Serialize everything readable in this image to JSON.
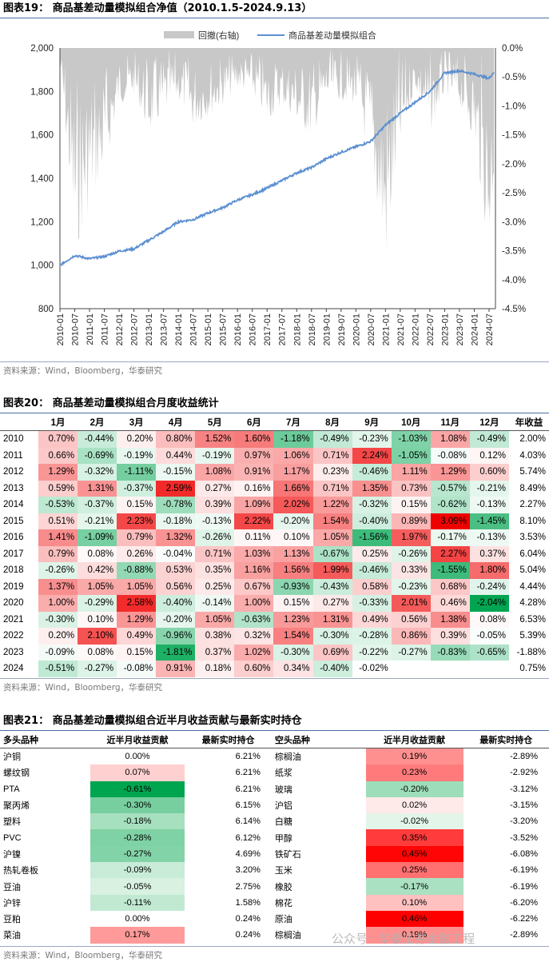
{
  "fig19": {
    "title": "图表19：  商品基差动量模拟组合净值（2010.1.5-2024.9.13）",
    "source": "资料来源：Wind，Bloomberg，华泰研究"
  },
  "chart_data": [
    {
      "type": "line",
      "title": "",
      "legend": [
        "回撤(右轴)",
        "商品基差动量模拟组合"
      ],
      "legend_position": "top",
      "x_ticks": [
        "2010-01",
        "2010-07",
        "2011-01",
        "2011-07",
        "2012-01",
        "2012-07",
        "2013-01",
        "2013-07",
        "2014-01",
        "2014-07",
        "2015-01",
        "2015-07",
        "2016-01",
        "2016-07",
        "2017-01",
        "2017-07",
        "2018-01",
        "2018-07",
        "2019-01",
        "2019-07",
        "2020-01",
        "2020-07",
        "2021-01",
        "2021-07",
        "2022-01",
        "2022-07",
        "2023-01",
        "2023-07",
        "2024-01",
        "2024-07"
      ],
      "ylim": [
        800,
        2000
      ],
      "y_ticks": [
        "2,000",
        "1,800",
        "1,600",
        "1,400",
        "1,200",
        "1,000",
        "800"
      ],
      "y2lim": [
        -4.5,
        0
      ],
      "y2_ticks": [
        "0.0%",
        "-0.5%",
        "-1.0%",
        "-1.5%",
        "-2.0%",
        "-2.5%",
        "-3.0%",
        "-3.5%",
        "-4.0%",
        "-4.5%"
      ],
      "series": [
        {
          "name": "商品基差动量模拟组合",
          "color": "#5b8fd1",
          "axis": "left",
          "x": [
            "2010-01",
            "2010-07",
            "2011-01",
            "2011-07",
            "2012-01",
            "2012-07",
            "2013-01",
            "2013-07",
            "2014-01",
            "2014-07",
            "2015-01",
            "2015-07",
            "2016-01",
            "2016-07",
            "2017-01",
            "2017-07",
            "2018-01",
            "2018-07",
            "2019-01",
            "2019-07",
            "2020-01",
            "2020-07",
            "2021-01",
            "2021-07",
            "2022-01",
            "2022-07",
            "2023-01",
            "2023-07",
            "2024-01",
            "2024-07",
            "2024-09"
          ],
          "values": [
            1000,
            1045,
            1030,
            1040,
            1065,
            1075,
            1115,
            1155,
            1200,
            1210,
            1240,
            1265,
            1300,
            1325,
            1355,
            1390,
            1425,
            1450,
            1490,
            1520,
            1545,
            1570,
            1645,
            1700,
            1750,
            1800,
            1885,
            1895,
            1880,
            1860,
            1890
          ]
        },
        {
          "name": "回撤(右轴)",
          "color": "#c8c8c8",
          "axis": "right",
          "type": "area",
          "x": [
            "2010-01",
            "2010-07",
            "2011-01",
            "2011-07",
            "2012-01",
            "2012-07",
            "2013-01",
            "2013-07",
            "2014-01",
            "2014-07",
            "2015-01",
            "2015-07",
            "2016-01",
            "2016-07",
            "2017-01",
            "2017-07",
            "2018-01",
            "2018-07",
            "2019-01",
            "2019-07",
            "2020-01",
            "2020-07",
            "2021-01",
            "2021-07",
            "2022-01",
            "2022-07",
            "2023-01",
            "2023-07",
            "2024-01",
            "2024-07",
            "2024-09"
          ],
          "values": [
            -0.3,
            -3.6,
            -2.8,
            -2.2,
            -1.0,
            -0.8,
            -1.5,
            -1.2,
            -0.9,
            -1.4,
            -1.2,
            -1.0,
            -0.7,
            -0.8,
            -1.3,
            -1.0,
            -1.3,
            -1.6,
            -0.9,
            -0.9,
            -1.0,
            -2.0,
            -3.9,
            -1.8,
            -0.7,
            -1.5,
            -0.8,
            -1.0,
            -1.6,
            -3.6,
            -2.4
          ]
        }
      ]
    },
    {
      "type": "heatmap",
      "title": "",
      "columns": [
        "1月",
        "2月",
        "3月",
        "4月",
        "5月",
        "6月",
        "7月",
        "8月",
        "9月",
        "10月",
        "11月",
        "12月",
        "年收益"
      ],
      "rows": [
        {
          "year": "2010",
          "m": [
            0.7,
            -0.44,
            0.2,
            0.8,
            1.52,
            1.6,
            -1.18,
            -0.49,
            -0.23,
            -1.03,
            1.08,
            -0.49
          ],
          "m_text": [
            "0.70%",
            "-0.44%",
            "0.20%",
            "0.80%",
            "1.52%",
            "1.60%",
            "-1.18%",
            "-0.49%",
            "-0.23%",
            "-1.03%",
            "1.08%",
            "-0.49%"
          ],
          "annual": "2.00%"
        },
        {
          "year": "2011",
          "m": [
            0.66,
            -0.69,
            -0.19,
            0.44,
            -0.19,
            0.97,
            1.06,
            0.71,
            2.24,
            -1.05,
            -0.08,
            0.12
          ],
          "m_text": [
            "0.66%",
            "-0.69%",
            "-0.19%",
            "0.44%",
            "-0.19%",
            "0.97%",
            "1.06%",
            "0.71%",
            "2.24%",
            "-1.05%",
            "-0.08%",
            "0.12%"
          ],
          "annual": "4.03%"
        },
        {
          "year": "2012",
          "m": [
            1.29,
            -0.32,
            -1.11,
            -0.15,
            1.08,
            0.91,
            1.17,
            0.23,
            -0.46,
            1.11,
            1.29,
            0.6
          ],
          "m_text": [
            "1.29%",
            "-0.32%",
            "-1.11%",
            "-0.15%",
            "1.08%",
            "0.91%",
            "1.17%",
            "0.23%",
            "-0.46%",
            "1.11%",
            "1.29%",
            "0.60%"
          ],
          "annual": "5.74%"
        },
        {
          "year": "2013",
          "m": [
            0.59,
            1.31,
            -0.37,
            2.59,
            0.27,
            0.16,
            1.66,
            0.71,
            1.35,
            0.73,
            -0.57,
            -0.21
          ],
          "m_text": [
            "0.59%",
            "1.31%",
            "-0.37%",
            "2.59%",
            "0.27%",
            "0.16%",
            "1.66%",
            "0.71%",
            "1.35%",
            "0.73%",
            "-0.57%",
            "-0.21%"
          ],
          "annual": "8.49%"
        },
        {
          "year": "2014",
          "m": [
            -0.53,
            -0.37,
            0.15,
            -0.78,
            0.39,
            1.09,
            2.02,
            1.22,
            -0.32,
            0.15,
            -0.62,
            -0.13
          ],
          "m_text": [
            "-0.53%",
            "-0.37%",
            "0.15%",
            "-0.78%",
            "0.39%",
            "1.09%",
            "2.02%",
            "1.22%",
            "-0.32%",
            "0.15%",
            "-0.62%",
            "-0.13%"
          ],
          "annual": "2.27%"
        },
        {
          "year": "2015",
          "m": [
            0.51,
            -0.21,
            2.23,
            -0.18,
            -0.13,
            2.22,
            -0.2,
            1.54,
            -0.4,
            0.89,
            3.09,
            -1.45
          ],
          "m_text": [
            "0.51%",
            "-0.21%",
            "2.23%",
            "-0.18%",
            "-0.13%",
            "2.22%",
            "-0.20%",
            "1.54%",
            "-0.40%",
            "0.89%",
            "3.09%",
            "-1.45%"
          ],
          "annual": "8.10%"
        },
        {
          "year": "2016",
          "m": [
            1.41,
            -1.09,
            0.79,
            1.32,
            -0.26,
            0.11,
            0.1,
            1.05,
            -1.56,
            1.97,
            -0.17,
            -0.13
          ],
          "m_text": [
            "1.41%",
            "-1.09%",
            "0.79%",
            "1.32%",
            "-0.26%",
            "0.11%",
            "0.10%",
            "1.05%",
            "-1.56%",
            "1.97%",
            "-0.17%",
            "-0.13%"
          ],
          "annual": "3.53%"
        },
        {
          "year": "2017",
          "m": [
            0.79,
            0.08,
            0.26,
            -0.04,
            0.71,
            1.03,
            1.13,
            -0.67,
            0.25,
            -0.26,
            2.27,
            0.37
          ],
          "m_text": [
            "0.79%",
            "0.08%",
            "0.26%",
            "-0.04%",
            "0.71%",
            "1.03%",
            "1.13%",
            "-0.67%",
            "0.25%",
            "-0.26%",
            "2.27%",
            "0.37%"
          ],
          "annual": "6.04%"
        },
        {
          "year": "2018",
          "m": [
            -0.26,
            0.42,
            -0.88,
            0.53,
            0.35,
            1.16,
            1.56,
            1.99,
            -0.46,
            0.33,
            -1.55,
            1.8
          ],
          "m_text": [
            "-0.26%",
            "0.42%",
            "-0.88%",
            "0.53%",
            "0.35%",
            "1.16%",
            "1.56%",
            "1.99%",
            "-0.46%",
            "0.33%",
            "-1.55%",
            "1.80%"
          ],
          "annual": "5.04%"
        },
        {
          "year": "2019",
          "m": [
            1.37,
            1.05,
            1.05,
            0.56,
            0.25,
            0.67,
            -0.93,
            -0.43,
            0.58,
            -0.23,
            0.68,
            -0.24
          ],
          "m_text": [
            "1.37%",
            "1.05%",
            "1.05%",
            "0.56%",
            "0.25%",
            "0.67%",
            "-0.93%",
            "-0.43%",
            "0.58%",
            "-0.23%",
            "0.68%",
            "-0.24%"
          ],
          "annual": "4.44%"
        },
        {
          "year": "2020",
          "m": [
            1.0,
            -0.29,
            2.58,
            -0.4,
            -0.14,
            1.0,
            0.15,
            0.27,
            -0.33,
            2.01,
            0.46,
            -2.04
          ],
          "m_text": [
            "1.00%",
            "-0.29%",
            "2.58%",
            "-0.40%",
            "-0.14%",
            "1.00%",
            "0.15%",
            "0.27%",
            "-0.33%",
            "2.01%",
            "0.46%",
            "-2.04%"
          ],
          "annual": "4.28%"
        },
        {
          "year": "2021",
          "m": [
            -0.3,
            0.1,
            1.29,
            -0.2,
            1.05,
            -0.63,
            1.23,
            1.31,
            0.49,
            0.56,
            1.38,
            0.08
          ],
          "m_text": [
            "-0.30%",
            "0.10%",
            "1.29%",
            "-0.20%",
            "1.05%",
            "-0.63%",
            "1.23%",
            "1.31%",
            "0.49%",
            "0.56%",
            "1.38%",
            "0.08%"
          ],
          "annual": "6.53%"
        },
        {
          "year": "2022",
          "m": [
            0.2,
            2.1,
            0.49,
            -0.96,
            0.38,
            0.32,
            1.54,
            -0.3,
            -0.28,
            0.86,
            0.39,
            -0.05
          ],
          "m_text": [
            "0.20%",
            "2.10%",
            "0.49%",
            "-0.96%",
            "0.38%",
            "0.32%",
            "1.54%",
            "-0.30%",
            "-0.28%",
            "0.86%",
            "0.39%",
            "-0.05%"
          ],
          "annual": "5.39%"
        },
        {
          "year": "2023",
          "m": [
            -0.09,
            0.08,
            0.15,
            -1.81,
            0.37,
            1.02,
            -0.3,
            0.69,
            -0.22,
            -0.27,
            -0.83,
            -0.65
          ],
          "m_text": [
            "-0.09%",
            "0.08%",
            "0.15%",
            "-1.81%",
            "0.37%",
            "1.02%",
            "-0.30%",
            "0.69%",
            "-0.22%",
            "-0.27%",
            "-0.83%",
            "-0.65%"
          ],
          "annual": "-1.88%"
        },
        {
          "year": "2024",
          "m": [
            -0.51,
            -0.27,
            -0.08,
            0.91,
            0.18,
            0.6,
            0.34,
            -0.4,
            -0.02,
            null,
            null,
            null
          ],
          "m_text": [
            "-0.51%",
            "-0.27%",
            "-0.08%",
            "0.91%",
            "0.18%",
            "0.60%",
            "0.34%",
            "-0.40%",
            "-0.02%",
            "",
            "",
            ""
          ],
          "annual": "0.75%"
        }
      ],
      "colors": {
        "positive": "#f00000",
        "negative": "#00a550",
        "zero": "#ffffff"
      }
    },
    {
      "type": "table",
      "title": "",
      "headers": [
        "多头品种",
        "近半月收益贡献",
        "最新实时持仓",
        "空头品种",
        "近半月收益贡献",
        "最新实时持仓"
      ],
      "long": [
        {
          "name": "沪铜",
          "c": 0.0,
          "c_text": "0.00%",
          "pos": "6.21%"
        },
        {
          "name": "螺纹钢",
          "c": 0.07,
          "c_text": "0.07%",
          "pos": "6.21%"
        },
        {
          "name": "PTA",
          "c": -0.61,
          "c_text": "-0.61%",
          "pos": "6.21%"
        },
        {
          "name": "聚丙烯",
          "c": -0.3,
          "c_text": "-0.30%",
          "pos": "6.15%"
        },
        {
          "name": "塑料",
          "c": -0.18,
          "c_text": "-0.18%",
          "pos": "6.14%"
        },
        {
          "name": "PVC",
          "c": -0.28,
          "c_text": "-0.28%",
          "pos": "6.12%"
        },
        {
          "name": "沪镍",
          "c": -0.27,
          "c_text": "-0.27%",
          "pos": "4.69%"
        },
        {
          "name": "热轧卷板",
          "c": -0.09,
          "c_text": "-0.09%",
          "pos": "3.20%"
        },
        {
          "name": "豆油",
          "c": -0.05,
          "c_text": "-0.05%",
          "pos": "2.75%"
        },
        {
          "name": "沪锌",
          "c": -0.11,
          "c_text": "-0.11%",
          "pos": "1.58%"
        },
        {
          "name": "豆粕",
          "c": 0.0,
          "c_text": "0.00%",
          "pos": "0.24%"
        },
        {
          "name": "菜油",
          "c": 0.17,
          "c_text": "0.17%",
          "pos": "0.24%"
        }
      ],
      "short": [
        {
          "name": "棕榈油",
          "c": 0.19,
          "c_text": "0.19%",
          "pos": "-2.89%"
        },
        {
          "name": "纸浆",
          "c": 0.23,
          "c_text": "0.23%",
          "pos": "-2.92%"
        },
        {
          "name": "玻璃",
          "c": -0.2,
          "c_text": "-0.20%",
          "pos": "-3.12%"
        },
        {
          "name": "沪铝",
          "c": 0.02,
          "c_text": "0.02%",
          "pos": "-3.15%"
        },
        {
          "name": "白糖",
          "c": -0.02,
          "c_text": "-0.02%",
          "pos": "-3.20%"
        },
        {
          "name": "甲醇",
          "c": 0.35,
          "c_text": "0.35%",
          "pos": "-3.52%"
        },
        {
          "name": "铁矿石",
          "c": 0.45,
          "c_text": "0.45%",
          "pos": "-6.08%"
        },
        {
          "name": "玉米",
          "c": 0.25,
          "c_text": "0.25%",
          "pos": "-6.19%"
        },
        {
          "name": "橡胶",
          "c": -0.17,
          "c_text": "-0.17%",
          "pos": "-6.19%"
        },
        {
          "name": "棉花",
          "c": 0.1,
          "c_text": "0.10%",
          "pos": "-6.20%"
        },
        {
          "name": "原油",
          "c": 0.46,
          "c_text": "0.46%",
          "pos": "-6.22%"
        },
        {
          "name": "棕榈油",
          "c": 0.19,
          "c_text": "0.19%",
          "pos": "-2.89%"
        }
      ]
    }
  ],
  "fig20": {
    "title": "图表20：  商品基差动量模拟组合月度收益统计",
    "source": "资料来源：Wind，Bloomberg，华泰研究"
  },
  "fig21": {
    "title": "图表21：  商品基差动量模拟组合近半月收益贡献与最新实时持仓",
    "source": "资料来源：Wind，Bloomberg，华泰研究"
  },
  "watermark": "公众号 · 华泰证券金融工程"
}
